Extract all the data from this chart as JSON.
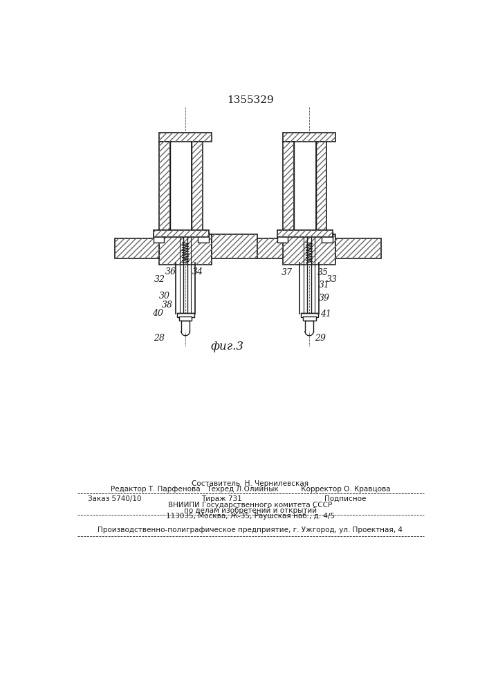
{
  "patent_number": "1355329",
  "fig_label": "фиг.3",
  "bg_color": "#ffffff",
  "line_color": "#1a1a1a",
  "footer": {
    "line1": "Составитель  Н. Чернилевская",
    "line2": "Редактор Т. Парфенова   Техред Л.Олийнык          Корректор О. Кравцова",
    "line3a": "Заказ 5740/10",
    "line3b": "Тираж 731",
    "line3c": "Подписное",
    "line4": "ВНИИПИ Государственного комитета СССР",
    "line5": "по делам изобретений и открытий",
    "line6": "113035, Москва, Ж-35, Раушская наб., д. 4/5",
    "line7": "Производственно-полиграфическое предприятие, г. Ужгород, ул. Проектная, 4"
  }
}
